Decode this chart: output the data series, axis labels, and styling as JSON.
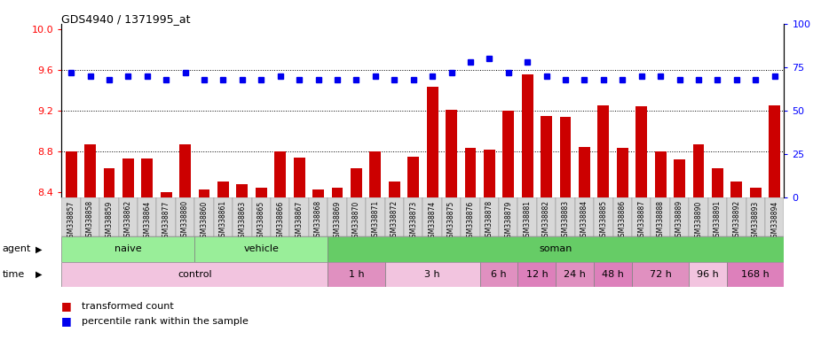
{
  "title": "GDS4940 / 1371995_at",
  "gsm_labels": [
    "GSM338857",
    "GSM338858",
    "GSM338859",
    "GSM338862",
    "GSM338864",
    "GSM338877",
    "GSM338880",
    "GSM338860",
    "GSM338861",
    "GSM338863",
    "GSM338865",
    "GSM338866",
    "GSM338867",
    "GSM338868",
    "GSM338869",
    "GSM338870",
    "GSM338871",
    "GSM338872",
    "GSM338873",
    "GSM338874",
    "GSM338875",
    "GSM338876",
    "GSM338878",
    "GSM338879",
    "GSM338881",
    "GSM338882",
    "GSM338883",
    "GSM338884",
    "GSM338885",
    "GSM338886",
    "GSM338887",
    "GSM338888",
    "GSM338889",
    "GSM338890",
    "GSM338891",
    "GSM338892",
    "GSM338893",
    "GSM338894"
  ],
  "bar_values": [
    8.8,
    8.87,
    8.63,
    8.73,
    8.73,
    8.4,
    8.87,
    8.43,
    8.5,
    8.48,
    8.44,
    8.8,
    8.74,
    8.43,
    8.44,
    8.63,
    8.8,
    8.5,
    8.75,
    9.43,
    9.21,
    8.83,
    8.82,
    9.2,
    9.55,
    9.15,
    9.14,
    8.84,
    9.25,
    8.83,
    9.24,
    8.8,
    8.72,
    8.87,
    8.63,
    8.5,
    8.44,
    9.25
  ],
  "percentile_values": [
    72,
    70,
    68,
    70,
    70,
    68,
    72,
    68,
    68,
    68,
    68,
    70,
    68,
    68,
    68,
    68,
    70,
    68,
    68,
    70,
    72,
    78,
    80,
    72,
    78,
    70,
    68,
    68,
    68,
    68,
    70,
    70,
    68,
    68,
    68,
    68,
    68,
    70
  ],
  "bar_color": "#cc0000",
  "dot_color": "#0000ee",
  "bar_baseline": 8.35,
  "ylim_left": [
    8.35,
    10.05
  ],
  "ylim_right": [
    0,
    100
  ],
  "yticks_left": [
    8.4,
    8.8,
    9.2,
    9.6,
    10.0
  ],
  "yticks_right": [
    0,
    25,
    50,
    75,
    100
  ],
  "hgrid_values": [
    8.8,
    9.2,
    9.6
  ],
  "agent_spans": [
    {
      "label": "naive",
      "start": 0,
      "end": 7,
      "color": "#99ee99"
    },
    {
      "label": "vehicle",
      "start": 7,
      "end": 14,
      "color": "#99ee99"
    },
    {
      "label": "soman",
      "start": 14,
      "end": 38,
      "color": "#66cc66"
    }
  ],
  "time_spans": [
    {
      "label": "control",
      "start": 0,
      "end": 14,
      "color": "#f2c4df"
    },
    {
      "label": "1 h",
      "start": 14,
      "end": 17,
      "color": "#e090c0"
    },
    {
      "label": "3 h",
      "start": 17,
      "end": 22,
      "color": "#f2c4df"
    },
    {
      "label": "6 h",
      "start": 22,
      "end": 24,
      "color": "#e090c0"
    },
    {
      "label": "12 h",
      "start": 24,
      "end": 26,
      "color": "#dd80bb"
    },
    {
      "label": "24 h",
      "start": 26,
      "end": 28,
      "color": "#e090c0"
    },
    {
      "label": "48 h",
      "start": 28,
      "end": 30,
      "color": "#dd80bb"
    },
    {
      "label": "72 h",
      "start": 30,
      "end": 33,
      "color": "#e090c0"
    },
    {
      "label": "96 h",
      "start": 33,
      "end": 35,
      "color": "#f2c4df"
    },
    {
      "label": "168 h",
      "start": 35,
      "end": 38,
      "color": "#dd80bb"
    }
  ],
  "plot_bgcolor": "#ffffff",
  "label_area_color": "#d8d8d8"
}
